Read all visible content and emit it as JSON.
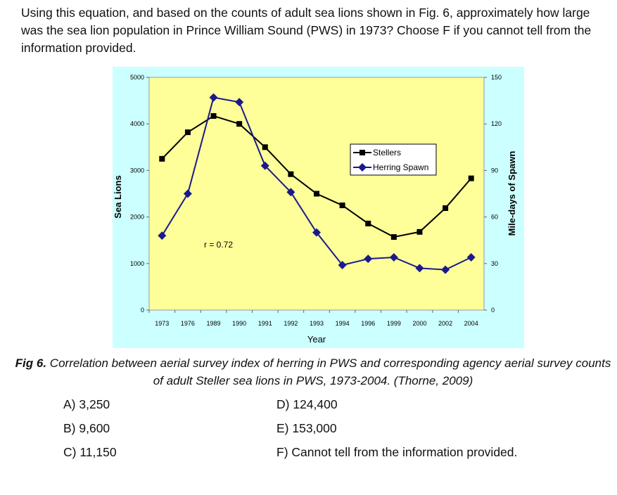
{
  "question": "Using this equation, and based on the counts of adult sea lions shown in Fig. 6, approximately how large was the sea lion population in Prince William Sound (PWS) in 1973? Choose F if you cannot tell from the information provided.",
  "chart_data": {
    "type": "line",
    "x_label": "Year",
    "y_label": "Sea Lions",
    "y2_label": "Mile-days of Spawn",
    "annotation": "r = 0.72",
    "categories": [
      "1973",
      "1976",
      "1989",
      "1990",
      "1991",
      "1992",
      "1993",
      "1994",
      "1996",
      "1999",
      "2000",
      "2002",
      "2004"
    ],
    "series": [
      {
        "name": "Stellers",
        "color": "#000000",
        "marker": "square",
        "values": [
          3250,
          3820,
          4170,
          4000,
          3500,
          2920,
          2500,
          2250,
          1860,
          1570,
          1680,
          2190,
          2830
        ]
      },
      {
        "name": "Herring Spawn",
        "color": "#1a1a8c",
        "marker": "diamond",
        "axis": "y2",
        "values": [
          48,
          75,
          137,
          134,
          93,
          76,
          50,
          29,
          33,
          34,
          27,
          26,
          34
        ]
      }
    ],
    "ylim": [
      0,
      5000
    ],
    "yticks": [
      0,
      1000,
      2000,
      3000,
      4000,
      5000
    ],
    "y2lim": [
      0,
      150
    ],
    "y2ticks": [
      0,
      30,
      60,
      90,
      120,
      150
    ],
    "plot_color": "#ffff99",
    "background_color": "#ccffff"
  },
  "caption": {
    "label": "Fig 6.",
    "text": "Correlation between aerial survey index of herring in PWS and corresponding agency aerial survey counts of adult Steller sea lions in PWS, 1973-2004. (Thorne, 2009)"
  },
  "choices": [
    "A) 3,250",
    "B) 9,600",
    "C) 11,150",
    "D) 124,400",
    "E) 153,000",
    "F) Cannot tell from the information provided."
  ]
}
